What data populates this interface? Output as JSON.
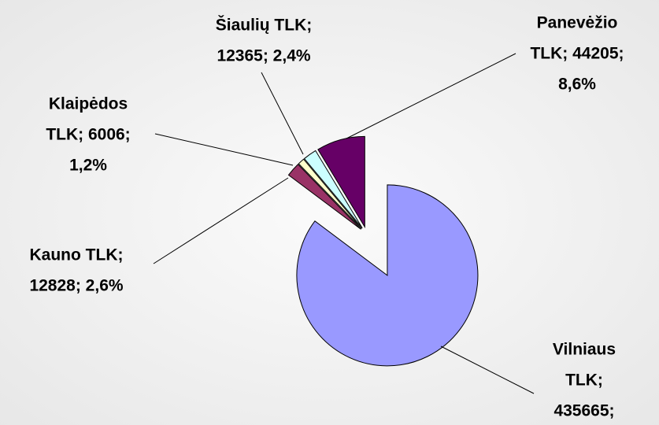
{
  "chart_data": {
    "type": "pie",
    "categories": [
      "Vilniaus TLK",
      "Kauno TLK",
      "Klaipėdos TLK",
      "Šiaulių TLK",
      "Panevėžio TLK"
    ],
    "values": [
      435665,
      12828,
      6006,
      12365,
      44205
    ],
    "colors": [
      "#9999ff",
      "#993366",
      "#ffffcc",
      "#ccffff",
      "#660066"
    ],
    "label_lines": [
      [
        "Vilniaus",
        "TLK;",
        "435665;"
      ],
      [
        "Kauno TLK;",
        "12828; 2,6%"
      ],
      [
        "Klaipėdos",
        "TLK; 6006;",
        "1,2%"
      ],
      [
        "Šiaulių TLK;",
        "12365; 2,4%"
      ],
      [
        "Panevėžio",
        "TLK; 44205;",
        "8,6%"
      ]
    ]
  }
}
